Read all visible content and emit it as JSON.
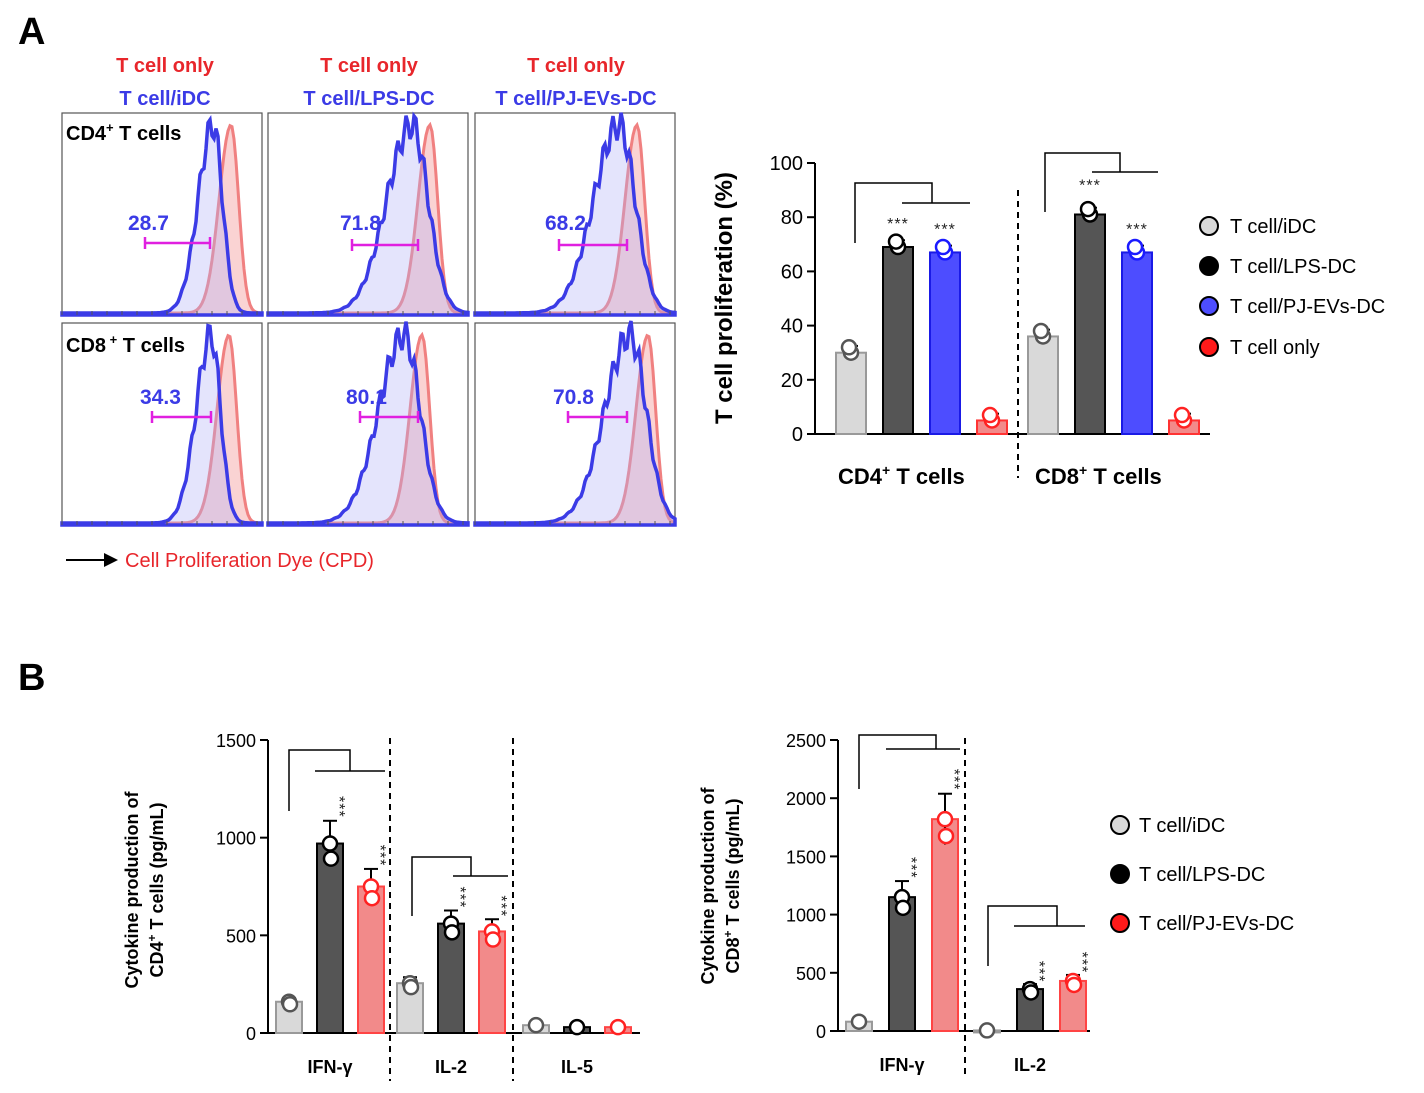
{
  "panel_labels": [
    "A",
    "B"
  ],
  "flow_headers": [
    {
      "ref": "T cell only",
      "sample": "T cell/iDC"
    },
    {
      "ref": "T cell only",
      "sample": "T cell/LPS-DC"
    },
    {
      "ref": "T cell only",
      "sample": "T cell/PJ-EVs-DC"
    }
  ],
  "flow_rows": [
    "CD4",
    "CD8"
  ],
  "flow_row_suffix": "T cells",
  "flow_percentages": [
    [
      "28.7",
      "71.8",
      "68.2"
    ],
    [
      "34.3",
      "80.1",
      "70.8"
    ]
  ],
  "cpd_label": "Cell Proliferation Dye (CPD)",
  "significance": "***",
  "colors": {
    "light_gray": "#d9d9d9",
    "dark_gray": "#555555",
    "blue": "#4d4dff",
    "red_light": "#f28a8a",
    "red": "#ff1a1a",
    "pink_fill": "#f08080",
    "magenta": "#e020e0",
    "blue_hist": "#3b3be6",
    "header_red": "#e8262b"
  },
  "chart_data": [
    {
      "id": "A-bar",
      "type": "bar",
      "title": "",
      "ylabel": "T cell proliferation (%)",
      "xlabel": "",
      "ylim": [
        0,
        100
      ],
      "yticks": [
        "0",
        "20",
        "40",
        "60",
        "80",
        "100"
      ],
      "groups": [
        {
          "label_main": "CD4",
          "label_sup": "+",
          "label_tail": " T cells"
        },
        {
          "label_main": "CD8",
          "label_sup": "+",
          "label_tail": " T cells"
        }
      ],
      "series": [
        {
          "name": "T cell/iDC",
          "values": [
            30,
            36
          ]
        },
        {
          "name": "T cell/LPS-DC",
          "values": [
            69,
            81
          ]
        },
        {
          "name": "T cell/PJ-EVs-DC",
          "values": [
            67,
            67
          ]
        },
        {
          "name": "T cell only",
          "values": [
            5,
            5
          ]
        }
      ]
    },
    {
      "id": "B-cd4",
      "type": "bar",
      "title": "",
      "ylabel_line1": "Cytokine production of",
      "ylabel_line2": "T cells (pg/mL)",
      "ylabel_cell": "CD4",
      "ylabel_sup": "+",
      "ylim": [
        0,
        1500
      ],
      "yticks": [
        "0",
        "500",
        "1000",
        "1500"
      ],
      "categories": [
        "IFN-γ",
        "IL-2",
        "IL-5"
      ],
      "series": [
        {
          "name": "T cell/iDC",
          "values": [
            160,
            255,
            40
          ]
        },
        {
          "name": "T cell/LPS-DC",
          "values": [
            970,
            560,
            30
          ]
        },
        {
          "name": "T cell/PJ-EVs-DC",
          "values": [
            750,
            520,
            30
          ]
        }
      ]
    },
    {
      "id": "B-cd8",
      "type": "bar",
      "title": "",
      "ylabel_line1": "Cytokine production of",
      "ylabel_line2": "T cells (pg/mL)",
      "ylabel_cell": "CD8",
      "ylabel_sup": "+",
      "ylim": [
        0,
        2500
      ],
      "yticks": [
        "0",
        "500",
        "1000",
        "1500",
        "2000",
        "2500"
      ],
      "categories": [
        "IFN-γ",
        "IL-2"
      ],
      "series": [
        {
          "name": "T cell/iDC",
          "values": [
            80,
            5
          ]
        },
        {
          "name": "T cell/LPS-DC",
          "values": [
            1150,
            360
          ]
        },
        {
          "name": "T cell/PJ-EVs-DC",
          "values": [
            1820,
            430
          ]
        }
      ]
    }
  ]
}
